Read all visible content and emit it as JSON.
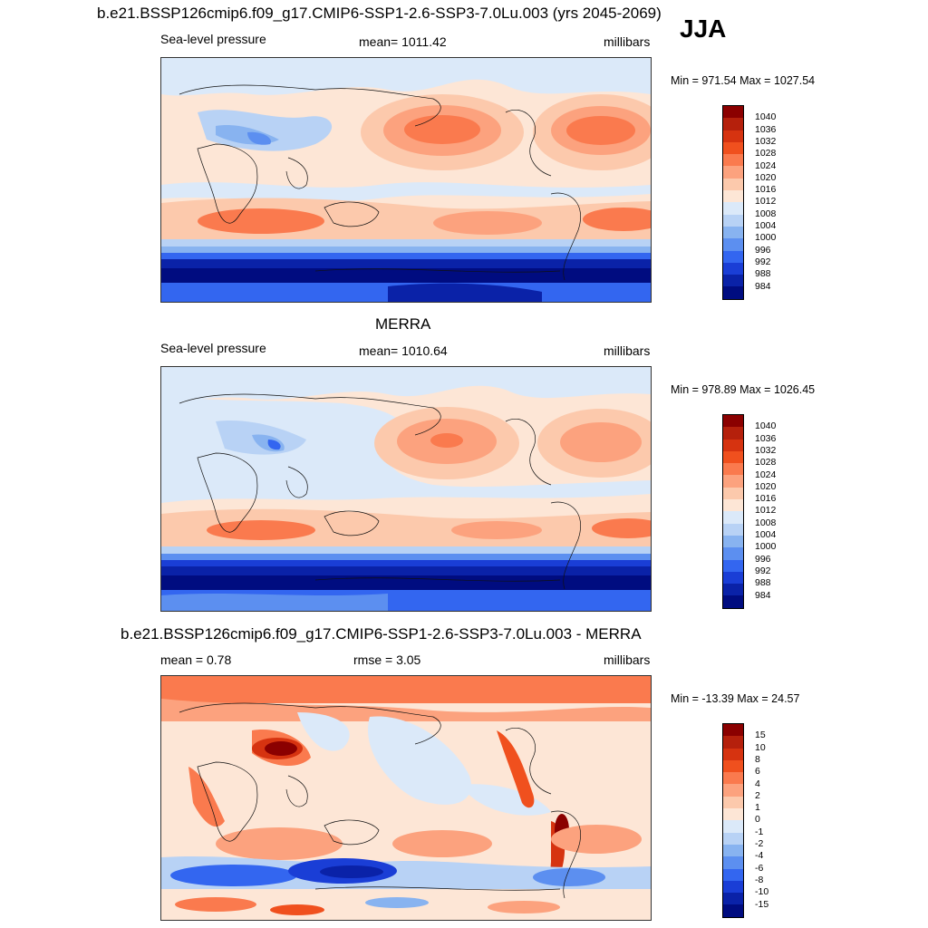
{
  "header": {
    "title": "b.e21.BSSP126cmip6.f09_g17.CMIP6-SSP1-2.6-SSP3-7.0Lu.003 (yrs 2045-2069)",
    "season": "JJA"
  },
  "panels": [
    {
      "id": "model",
      "title": "",
      "left_label": "Sea-level pressure",
      "center_label": "mean= 1011.42",
      "right_label": "millibars",
      "minmax": "Min = 971.54 Max = 1027.54",
      "colorbar": {
        "labels": [
          "1040",
          "1036",
          "1032",
          "1028",
          "1024",
          "1020",
          "1016",
          "1012",
          "1008",
          "1004",
          "1000",
          "996",
          "992",
          "988",
          "984"
        ],
        "colors": [
          "#8b0000",
          "#b5200c",
          "#d63310",
          "#f0501e",
          "#fa7a4e",
          "#fca27e",
          "#fcc9ac",
          "#fde6d6",
          "#dbe9f9",
          "#b8d2f5",
          "#88b3f0",
          "#5c8ff0",
          "#3366f0",
          "#1a3ed6",
          "#0a22a8",
          "#000c80"
        ]
      }
    },
    {
      "id": "obs",
      "title": "MERRA",
      "left_label": "Sea-level pressure",
      "center_label": "mean= 1010.64",
      "right_label": "millibars",
      "minmax": "Min = 978.89 Max = 1026.45",
      "colorbar": {
        "labels": [
          "1040",
          "1036",
          "1032",
          "1028",
          "1024",
          "1020",
          "1016",
          "1012",
          "1008",
          "1004",
          "1000",
          "996",
          "992",
          "988",
          "984"
        ],
        "colors": [
          "#8b0000",
          "#b5200c",
          "#d63310",
          "#f0501e",
          "#fa7a4e",
          "#fca27e",
          "#fcc9ac",
          "#fde6d6",
          "#dbe9f9",
          "#b8d2f5",
          "#88b3f0",
          "#5c8ff0",
          "#3366f0",
          "#1a3ed6",
          "#0a22a8",
          "#000c80"
        ]
      }
    },
    {
      "id": "diff",
      "title": "b.e21.BSSP126cmip6.f09_g17.CMIP6-SSP1-2.6-SSP3-7.0Lu.003 - MERRA",
      "left_label": "mean =   0.78",
      "center_label": "rmse =   3.05",
      "right_label": "millibars",
      "minmax": "Min = -13.39 Max =  24.57",
      "colorbar": {
        "labels": [
          "15",
          "10",
          "8",
          "6",
          "4",
          "2",
          "1",
          "0",
          "-1",
          "-2",
          "-4",
          "-6",
          "-8",
          "-10",
          "-15"
        ],
        "colors": [
          "#8b0000",
          "#b5200c",
          "#d63310",
          "#f0501e",
          "#fa7a4e",
          "#fca27e",
          "#fcc9ac",
          "#fde6d6",
          "#dbe9f9",
          "#b8d2f5",
          "#88b3f0",
          "#5c8ff0",
          "#3366f0",
          "#1a3ed6",
          "#0a22a8",
          "#000c80"
        ]
      }
    }
  ]
}
